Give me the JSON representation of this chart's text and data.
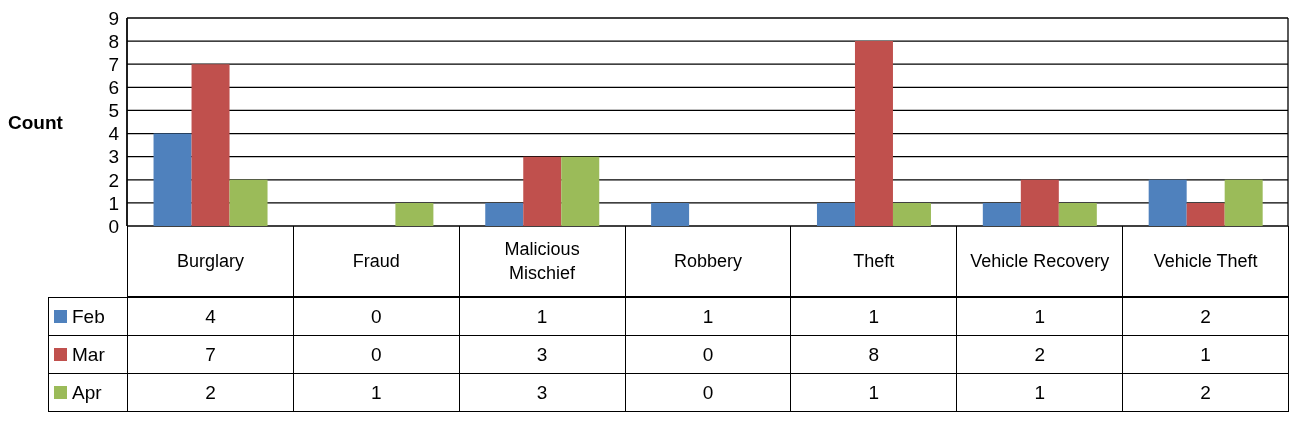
{
  "chart_data": {
    "type": "bar",
    "ylabel": "Count",
    "categories": [
      "Burglary",
      "Fraud",
      "Malicious Mischief",
      "Robbery",
      "Theft",
      "Vehicle Recovery",
      "Vehicle Theft"
    ],
    "series": [
      {
        "name": "Feb",
        "color": "#4f81bd",
        "values": [
          4,
          0,
          1,
          1,
          1,
          1,
          2
        ]
      },
      {
        "name": "Mar",
        "color": "#c0504d",
        "values": [
          7,
          0,
          3,
          0,
          8,
          2,
          1
        ]
      },
      {
        "name": "Apr",
        "color": "#9bbb59",
        "values": [
          2,
          1,
          3,
          0,
          1,
          1,
          2
        ]
      }
    ],
    "ylim": [
      0,
      9
    ],
    "yticks": [
      0,
      1,
      2,
      3,
      4,
      5,
      6,
      7,
      8,
      9
    ],
    "grid": "y",
    "legend": "bottom",
    "data_labels": true
  }
}
